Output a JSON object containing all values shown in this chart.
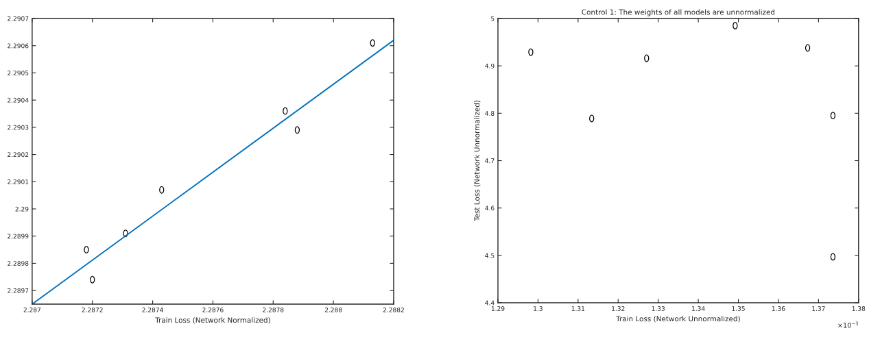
{
  "chart_data": [
    {
      "type": "scatter",
      "xlabel": "Train Loss (Network Normalized)",
      "marker": "circle",
      "grid": false,
      "legend": false,
      "xlim": [
        2.287,
        2.2882
      ],
      "xticks": [
        2.287,
        2.2872,
        2.2874,
        2.2876,
        2.2878,
        2.288,
        2.2882
      ],
      "ylim": [
        2.28965,
        2.2907
      ],
      "yticks": [
        2.2897,
        2.2898,
        2.2899,
        2.29,
        2.2901,
        2.2902,
        2.2903,
        2.2904,
        2.2905,
        2.2906,
        2.2907
      ],
      "series": [
        {
          "type": "scatter",
          "color": "#000000",
          "x": [
            2.28813,
            2.28784,
            2.28788,
            2.28743,
            2.28731,
            2.28718,
            2.2872
          ],
          "values": [
            2.29061,
            2.29036,
            2.29029,
            2.29007,
            2.28991,
            2.28985,
            2.28974
          ]
        },
        {
          "type": "line",
          "marker": "none",
          "color": "#0072bd",
          "x": [
            2.287,
            2.2882
          ],
          "values": [
            2.28965,
            2.29062
          ]
        }
      ]
    },
    {
      "type": "scatter",
      "title": "Control 1: The weights of all models are unnormalized",
      "xlabel": "Train Loss (Network Unnormalized)",
      "ylabel": "Test Loss (Network Unnormalized)",
      "marker": "circle",
      "grid": false,
      "legend": false,
      "xlim": [
        1.29,
        1.38
      ],
      "xticks": [
        1.29,
        1.3,
        1.31,
        1.32,
        1.33,
        1.34,
        1.35,
        1.36,
        1.37,
        1.38
      ],
      "ylim": [
        4.4,
        5
      ],
      "yticks": [
        4.4,
        4.5,
        4.6,
        4.7,
        4.8,
        4.9,
        5
      ],
      "annotations": [
        "×10$^{−3}$"
      ],
      "series": [
        {
          "type": "scatter",
          "color": "#000000",
          "x": [
            1.2982,
            1.3134,
            1.3271,
            1.3492,
            1.3673,
            1.3736,
            1.3736
          ],
          "values": [
            4.929,
            4.789,
            4.916,
            4.985,
            4.938,
            4.795,
            4.497
          ]
        }
      ]
    }
  ]
}
